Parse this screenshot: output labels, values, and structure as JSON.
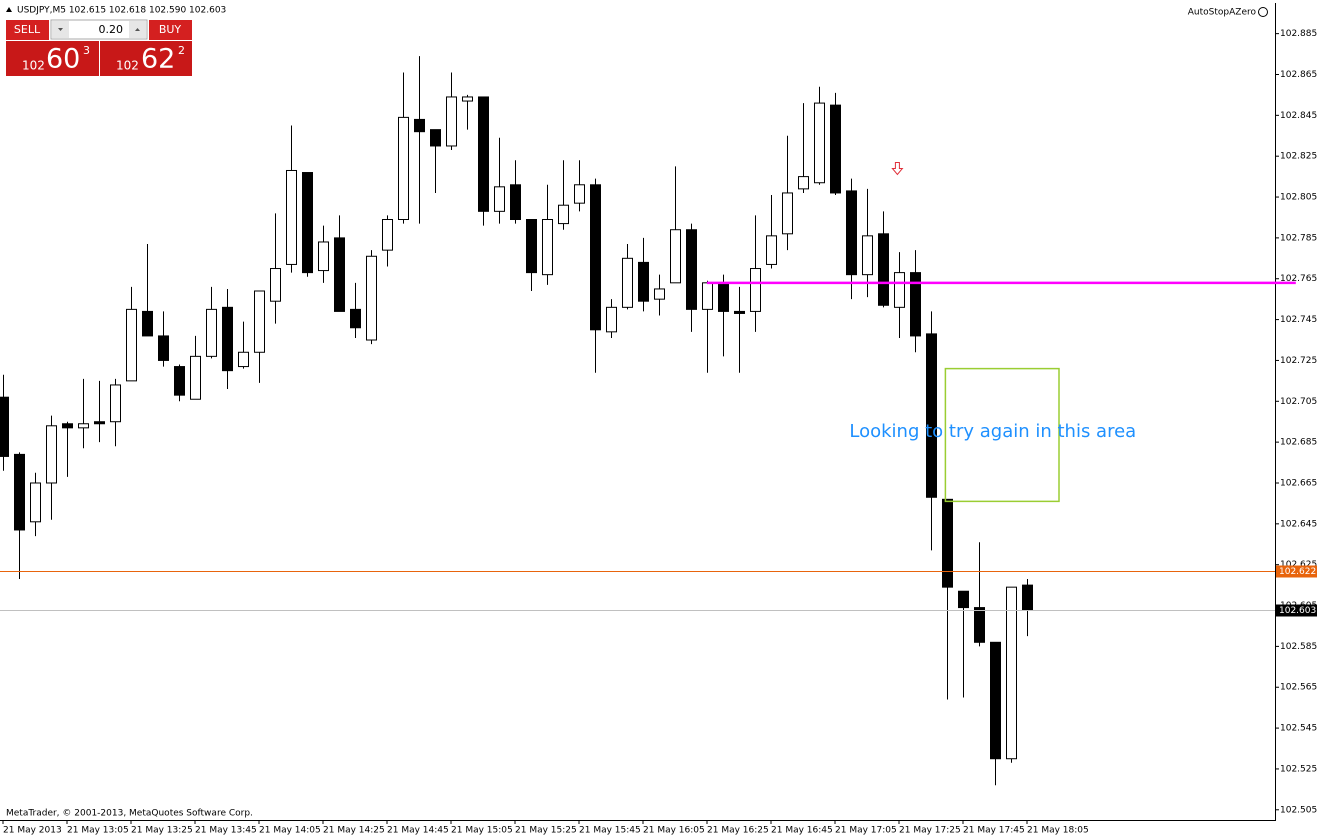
{
  "chart_data": {
    "type": "candlestick",
    "title": "USDJPY,M5  102.615 102.618 102.590 102.603",
    "indicator": "AutoStopAZero",
    "footer": "MetaTrader, © 2001-2013, MetaQuotes Software Corp.",
    "categories": [
      "21 May 2013",
      null,
      null,
      null,
      "21 May 13:05",
      null,
      null,
      null,
      "21 May 13:25",
      null,
      null,
      null,
      "21 May 13:45",
      null,
      null,
      null,
      "21 May 14:05",
      null,
      null,
      null,
      "21 May 14:25",
      null,
      null,
      null,
      "21 May 14:45",
      null,
      null,
      null,
      "21 May 15:05",
      null,
      null,
      null,
      "21 May 15:25",
      null,
      null,
      null,
      "21 May 15:45",
      null,
      null,
      null,
      "21 May 16:05",
      null,
      null,
      null,
      "21 May 16:25",
      null,
      null,
      null,
      "21 May 16:45",
      null,
      null,
      null,
      "21 May 17:05",
      null,
      null,
      null,
      "21 May 17:25",
      null,
      null,
      null,
      "21 May 17:45",
      null,
      null,
      null,
      "21 May 18:05"
    ],
    "open": [
      102.707,
      102.679,
      102.646,
      102.665,
      102.694,
      102.692,
      102.695,
      102.695,
      102.715,
      102.749,
      102.737,
      102.722,
      102.706,
      102.727,
      102.751,
      102.722,
      102.729,
      102.754,
      102.772,
      102.817,
      102.769,
      102.785,
      102.75,
      102.735,
      102.779,
      102.794,
      102.843,
      102.838,
      102.83,
      102.852,
      102.854,
      102.798,
      102.811,
      102.794,
      102.767,
      102.792,
      102.802,
      102.811,
      102.739,
      102.751,
      102.773,
      102.755,
      102.763,
      102.789,
      102.75,
      102.763,
      102.749,
      102.749,
      102.772,
      102.787,
      102.809,
      102.812,
      102.85,
      102.808,
      102.767,
      102.787,
      102.751,
      102.768,
      102.738,
      102.657,
      102.612,
      102.604,
      102.587,
      102.53,
      102.615
    ],
    "high": [
      102.718,
      102.68,
      102.67,
      102.698,
      102.695,
      102.716,
      102.715,
      102.716,
      102.761,
      102.782,
      102.749,
      102.723,
      102.737,
      102.761,
      102.76,
      102.744,
      102.759,
      102.797,
      102.84,
      102.817,
      102.791,
      102.796,
      102.763,
      102.779,
      102.796,
      102.866,
      102.874,
      102.838,
      102.866,
      102.855,
      102.854,
      102.834,
      102.823,
      102.794,
      102.811,
      102.823,
      102.823,
      102.814,
      102.755,
      102.782,
      102.785,
      102.767,
      102.82,
      102.792,
      102.764,
      102.767,
      102.761,
      102.796,
      102.806,
      102.835,
      102.851,
      102.859,
      102.856,
      102.814,
      102.809,
      102.798,
      102.778,
      102.779,
      102.749,
      102.657,
      102.612,
      102.636,
      102.587,
      102.614,
      102.618
    ],
    "low": [
      102.671,
      102.618,
      102.639,
      102.647,
      102.668,
      102.682,
      102.685,
      102.683,
      102.715,
      102.737,
      102.722,
      102.705,
      102.706,
      102.726,
      102.711,
      102.721,
      102.714,
      102.743,
      102.768,
      102.766,
      102.763,
      102.749,
      102.736,
      102.733,
      102.771,
      102.792,
      102.792,
      102.807,
      102.828,
      102.838,
      102.791,
      102.792,
      102.792,
      102.759,
      102.762,
      102.789,
      102.798,
      102.719,
      102.736,
      102.75,
      102.749,
      102.747,
      102.763,
      102.739,
      102.719,
      102.727,
      102.719,
      102.739,
      102.77,
      102.779,
      102.807,
      102.811,
      102.806,
      102.755,
      102.756,
      102.751,
      102.736,
      102.729,
      102.632,
      102.559,
      102.56,
      102.585,
      102.517,
      102.528,
      102.59
    ],
    "close": [
      102.678,
      102.642,
      102.665,
      102.693,
      102.692,
      102.694,
      102.694,
      102.713,
      102.75,
      102.737,
      102.725,
      102.708,
      102.727,
      102.75,
      102.72,
      102.729,
      102.759,
      102.77,
      102.818,
      102.768,
      102.783,
      102.749,
      102.741,
      102.776,
      102.794,
      102.844,
      102.837,
      102.83,
      102.854,
      102.854,
      102.798,
      102.81,
      102.794,
      102.768,
      102.794,
      102.801,
      102.811,
      102.74,
      102.751,
      102.775,
      102.754,
      102.76,
      102.789,
      102.75,
      102.763,
      102.749,
      102.748,
      102.77,
      102.786,
      102.807,
      102.815,
      102.851,
      102.807,
      102.767,
      102.786,
      102.752,
      102.768,
      102.737,
      102.658,
      102.614,
      102.604,
      102.587,
      102.53,
      102.614,
      102.603
    ],
    "up_color": "#ffffff",
    "down_color": "#000000",
    "ylim": [
      102.5,
      102.9
    ],
    "yticks": [
      102.885,
      102.865,
      102.845,
      102.825,
      102.805,
      102.785,
      102.765,
      102.745,
      102.725,
      102.705,
      102.685,
      102.665,
      102.645,
      102.625,
      102.605,
      102.585,
      102.565,
      102.545,
      102.525,
      102.505
    ],
    "price_lines": [
      {
        "value": 102.622,
        "color": "#e8640c"
      },
      {
        "value": 102.603,
        "color": "#c0c0c0"
      }
    ],
    "level_line": {
      "value": 102.763,
      "x_from": 44,
      "x_to": 80.8,
      "color": "#ff00ff"
    },
    "box": {
      "x_from": 58.9,
      "x_to": 66,
      "y_from": 102.656,
      "y_to": 102.721,
      "color": "#9acd32"
    },
    "arrow": {
      "x": 55.9,
      "y": 102.819,
      "color": "#e0303a"
    },
    "annotation": {
      "text": "Looking to try again in this area",
      "x": 52.9,
      "y": 102.69,
      "color": "#1e90ff"
    },
    "trade_panel": {
      "sell": "SELL",
      "buy": "BUY",
      "lot": "0.20",
      "bid": {
        "big": "102",
        "mid": "60",
        "small": "3"
      },
      "ask": {
        "big": "102",
        "mid": "62",
        "small": "2"
      }
    }
  }
}
